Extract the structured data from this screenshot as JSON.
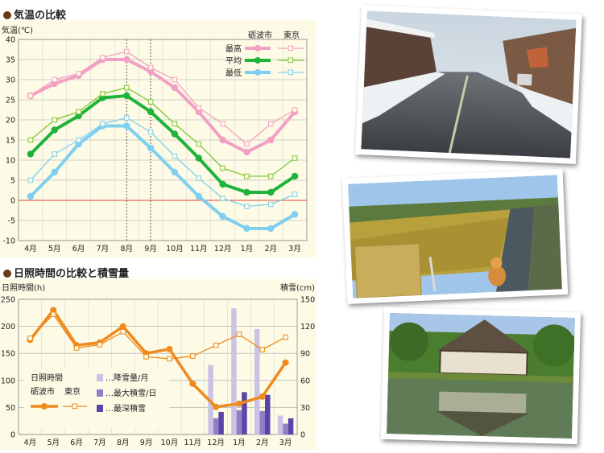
{
  "chart_data": [
    {
      "type": "line",
      "title": "気温の比較",
      "ylabel": "気温(℃)",
      "categories": [
        "4月",
        "5月",
        "6月",
        "7月",
        "8月",
        "9月",
        "10月",
        "11月",
        "12月",
        "1月",
        "2月",
        "3月"
      ],
      "ylim": [
        -10,
        40
      ],
      "yticks": [
        -10,
        -5,
        0,
        5,
        10,
        15,
        20,
        25,
        30,
        35,
        40
      ],
      "grid": true,
      "legend_position": "top-right",
      "legend_headers": [
        "砺波市",
        "東京"
      ],
      "series": [
        {
          "name": "最高",
          "city": "砺波市",
          "color": "#f2a0c4",
          "values": [
            26,
            29,
            31,
            35,
            35,
            32,
            28,
            22,
            15,
            12,
            15,
            22
          ]
        },
        {
          "name": "最高",
          "city": "東京",
          "color": "#f2a0c4",
          "values": [
            26,
            30,
            31.5,
            35.5,
            37,
            33,
            30,
            23,
            19,
            14,
            19,
            22.5
          ]
        },
        {
          "name": "平均",
          "city": "砺波市",
          "color": "#1fb33a",
          "values": [
            11.5,
            17.5,
            21,
            25.5,
            26,
            22,
            16.5,
            10.5,
            4,
            2,
            2,
            6
          ]
        },
        {
          "name": "平均",
          "city": "東京",
          "color": "#7fc636",
          "values": [
            15,
            20,
            22,
            26.5,
            28,
            24.5,
            19,
            14,
            8,
            6,
            6,
            10.5
          ]
        },
        {
          "name": "最低",
          "city": "砺波市",
          "color": "#7fcff0",
          "values": [
            1,
            7,
            14,
            18.5,
            18.5,
            13,
            7,
            1,
            -4,
            -7,
            -7,
            -3.5
          ]
        },
        {
          "name": "最低",
          "city": "東京",
          "color": "#7fcff0",
          "values": [
            5,
            11.5,
            15,
            19,
            20.5,
            17,
            11,
            5.5,
            0.5,
            -1.5,
            -1,
            1.5
          ]
        }
      ]
    },
    {
      "type": "bar+line",
      "title": "日照時間の比較と積雪量",
      "ylabel_left": "日照時間(h)",
      "ylabel_right": "積雪(cm)",
      "categories": [
        "4月",
        "5月",
        "6月",
        "7月",
        "8月",
        "9月",
        "10月",
        "11月",
        "12月",
        "1月",
        "2月",
        "3月"
      ],
      "ylim_left": [
        0,
        250
      ],
      "yticks_left": [
        0,
        50,
        100,
        150,
        200,
        250
      ],
      "ylim_right": [
        0,
        150
      ],
      "yticks_right": [
        0,
        30,
        60,
        90,
        120,
        150
      ],
      "grid": true,
      "legend_position": "bottom-left",
      "sunshine_legend_title": "日照時間",
      "sunshine_series": [
        {
          "name": "砺波市",
          "color": "#ee8a1e",
          "values": [
            175,
            230,
            165,
            170,
            200,
            150,
            158,
            94,
            51,
            57,
            70,
            133
          ]
        },
        {
          "name": "東京",
          "color": "#ee8a1e",
          "values": [
            178,
            222,
            160,
            166,
            190,
            144,
            140,
            145,
            165,
            185,
            157,
            180
          ]
        }
      ],
      "snow_series": [
        {
          "name": "…降雪量/月",
          "color": "#c9c3e6",
          "values": [
            0,
            0,
            0,
            0,
            0,
            0,
            0,
            0,
            77,
            140,
            117,
            21
          ]
        },
        {
          "name": "…最大積雪/日",
          "color": "#8d80c7",
          "values": [
            0,
            0,
            0,
            0,
            0,
            0,
            0,
            0,
            18,
            27,
            26,
            12
          ]
        },
        {
          "name": "…最深積雪",
          "color": "#5a44a8",
          "values": [
            0,
            0,
            0,
            0,
            0,
            0,
            0,
            0,
            25,
            47,
            44,
            18
          ]
        }
      ]
    }
  ],
  "icons": [
    "photo-snowy-street",
    "photo-rice-field-dog",
    "photo-farmhouse-reflection"
  ]
}
